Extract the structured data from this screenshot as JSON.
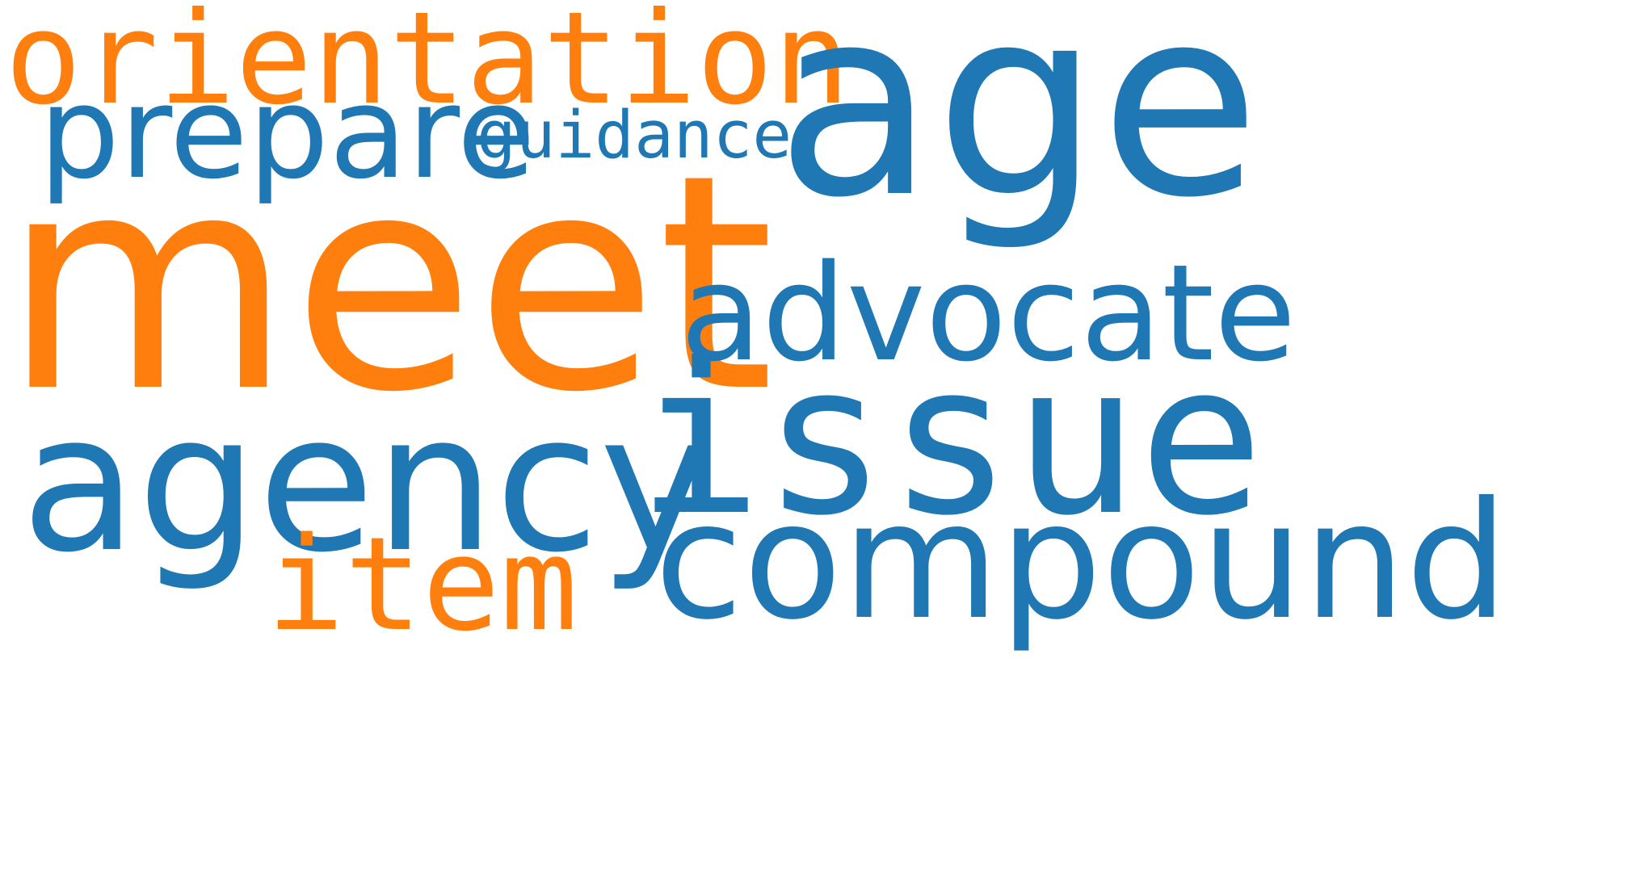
{
  "palette": {
    "blue": "#1f77b4",
    "orange": "#ff7f0e"
  },
  "words": {
    "orientation": {
      "text": "orientation",
      "color": "#ff7f0e"
    },
    "prepare": {
      "text": "prepare",
      "color": "#1f77b4"
    },
    "guidance": {
      "text": "guidance",
      "color": "#1f77b4"
    },
    "age": {
      "text": "age",
      "color": "#1f77b4"
    },
    "meet": {
      "text": "meet",
      "color": "#ff7f0e"
    },
    "advocate": {
      "text": "advocate",
      "color": "#1f77b4"
    },
    "issue": {
      "text": "issue",
      "color": "#1f77b4"
    },
    "agency": {
      "text": "agency",
      "color": "#1f77b4"
    },
    "item": {
      "text": "item",
      "color": "#ff7f0e"
    },
    "compound": {
      "text": "compound",
      "color": "#1f77b4"
    }
  }
}
